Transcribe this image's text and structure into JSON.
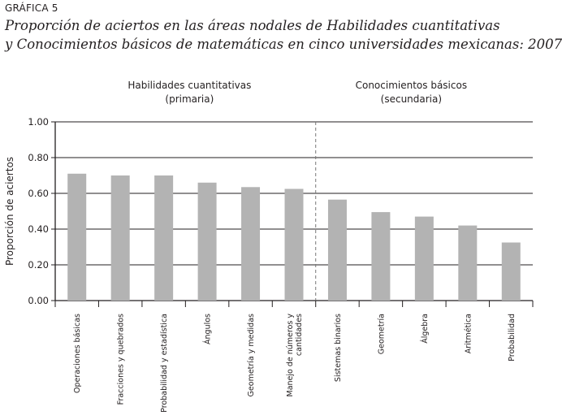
{
  "figure_label": "GRÁFICA 5",
  "title_line1": "Proporción de aciertos en las áreas nodales de Habilidades cuantitativas",
  "title_line2": "y Conocimientos básicos de matemáticas en cinco universidades mexicanas: 2007",
  "chart_data": {
    "type": "bar",
    "title": "Proporción de aciertos en las áreas nodales de Habilidades cuantitativas y Conocimientos básicos de matemáticas en cinco universidades mexicanas: 2007",
    "xlabel": "",
    "ylabel": "Proporción de aciertos",
    "ylim": [
      0,
      1
    ],
    "yticks": [
      "0.00",
      "0.20",
      "0.40",
      "0.60",
      "0.80",
      "1.00"
    ],
    "grid": true,
    "categories": [
      "Operaciones básicas",
      "Fracciones y quebrados",
      "Probabilidad y estadística",
      "Ángulos",
      "Geometría y medidas",
      "Manejo de números y cantidades",
      "Sistemas binarios",
      "Geometría",
      "Álgebra",
      "Aritmética",
      "Probabilidad"
    ],
    "values": [
      0.71,
      0.7,
      0.7,
      0.66,
      0.635,
      0.625,
      0.565,
      0.495,
      0.47,
      0.42,
      0.325
    ],
    "groups": [
      {
        "name": "Habilidades cuantitativas",
        "sub": "(primaria)",
        "start": 0,
        "count": 6
      },
      {
        "name": "Conocimientos básicos",
        "sub": "(secundaria)",
        "start": 6,
        "count": 5
      }
    ],
    "bar_color": "#b3b3b3"
  }
}
